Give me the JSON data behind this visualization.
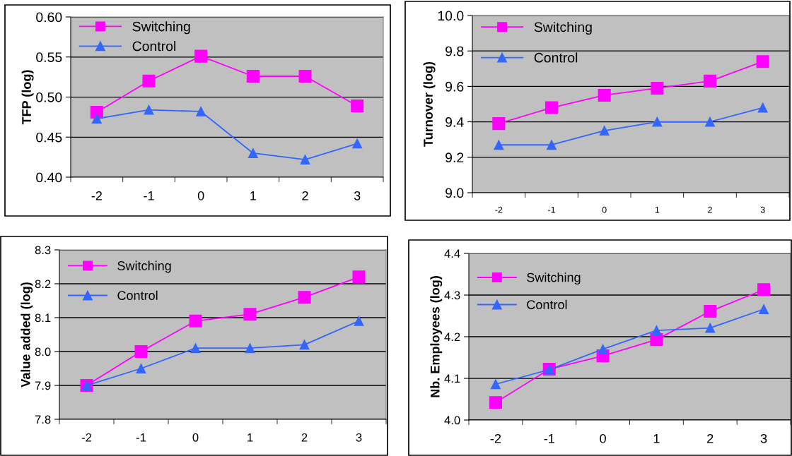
{
  "chart_data": [
    {
      "type": "line",
      "ylabel": "TFP (log)",
      "categories": [
        "-2",
        "-1",
        "0",
        "1",
        "2",
        "3"
      ],
      "ylim": [
        0.4,
        0.6
      ],
      "yticks": [
        {
          "value": 0.4,
          "label": "0.40"
        },
        {
          "value": 0.45,
          "label": "0.45"
        },
        {
          "value": 0.5,
          "label": "0.50"
        },
        {
          "value": 0.55,
          "label": "0.55"
        },
        {
          "value": 0.6,
          "label": "0.60"
        }
      ],
      "grid": "y",
      "legend": "top left",
      "series": [
        {
          "name": "Switching",
          "color": "#ff00ff",
          "marker": "square",
          "values": [
            0.481,
            0.52,
            0.551,
            0.526,
            0.526,
            0.489
          ]
        },
        {
          "name": "Control",
          "color": "#3366ff",
          "marker": "triangle",
          "values": [
            0.473,
            0.484,
            0.482,
            0.43,
            0.422,
            0.442
          ]
        }
      ]
    },
    {
      "type": "line",
      "ylabel": "Turnover (log)",
      "categories": [
        "-2",
        "-1",
        "0",
        "1",
        "2",
        "3"
      ],
      "ylim": [
        9.0,
        10.0
      ],
      "yticks": [
        {
          "value": 9.0,
          "label": "9.0"
        },
        {
          "value": 9.2,
          "label": "9.2"
        },
        {
          "value": 9.4,
          "label": "9.4"
        },
        {
          "value": 9.6,
          "label": "9.6"
        },
        {
          "value": 9.8,
          "label": "9.8"
        },
        {
          "value": 10.0,
          "label": "10.0"
        }
      ],
      "grid": "y",
      "legend": "top left",
      "series": [
        {
          "name": "Switching",
          "color": "#ff00ff",
          "marker": "square",
          "values": [
            9.39,
            9.48,
            9.55,
            9.59,
            9.63,
            9.74
          ]
        },
        {
          "name": "Control",
          "color": "#3366ff",
          "marker": "triangle",
          "values": [
            9.27,
            9.27,
            9.35,
            9.4,
            9.4,
            9.48
          ]
        }
      ]
    },
    {
      "type": "line",
      "ylabel": "Value added (log)",
      "categories": [
        "-2",
        "-1",
        "0",
        "1",
        "2",
        "3"
      ],
      "ylim": [
        7.8,
        8.3
      ],
      "yticks": [
        {
          "value": 7.8,
          "label": "7.8"
        },
        {
          "value": 7.9,
          "label": "7.9"
        },
        {
          "value": 8.0,
          "label": "8.0"
        },
        {
          "value": 8.1,
          "label": "8.1"
        },
        {
          "value": 8.2,
          "label": "8.2"
        },
        {
          "value": 8.3,
          "label": "8.3"
        }
      ],
      "grid": "y",
      "legend": "top left",
      "series": [
        {
          "name": "Switching",
          "color": "#ff00ff",
          "marker": "square",
          "values": [
            7.9,
            8.0,
            8.09,
            8.11,
            8.16,
            8.22
          ]
        },
        {
          "name": "Control",
          "color": "#3366ff",
          "marker": "triangle",
          "values": [
            7.9,
            7.95,
            8.01,
            8.01,
            8.02,
            8.09
          ]
        }
      ]
    },
    {
      "type": "line",
      "ylabel": "Nb. Employees (log)",
      "categories": [
        "-2",
        "-1",
        "0",
        "1",
        "2",
        "3"
      ],
      "ylim": [
        4.0,
        4.4
      ],
      "yticks": [
        {
          "value": 4.0,
          "label": "4.0"
        },
        {
          "value": 4.1,
          "label": "4.1"
        },
        {
          "value": 4.2,
          "label": "4.2"
        },
        {
          "value": 4.3,
          "label": "4.3"
        },
        {
          "value": 4.4,
          "label": "4.4"
        }
      ],
      "grid": "y",
      "legend": "top left",
      "series": [
        {
          "name": "Switching",
          "color": "#ff00ff",
          "marker": "square",
          "values": [
            4.042,
            4.122,
            4.154,
            4.193,
            4.261,
            4.313
          ]
        },
        {
          "name": "Control",
          "color": "#3366ff",
          "marker": "triangle",
          "values": [
            4.086,
            4.121,
            4.17,
            4.215,
            4.221,
            4.266
          ]
        }
      ]
    }
  ]
}
